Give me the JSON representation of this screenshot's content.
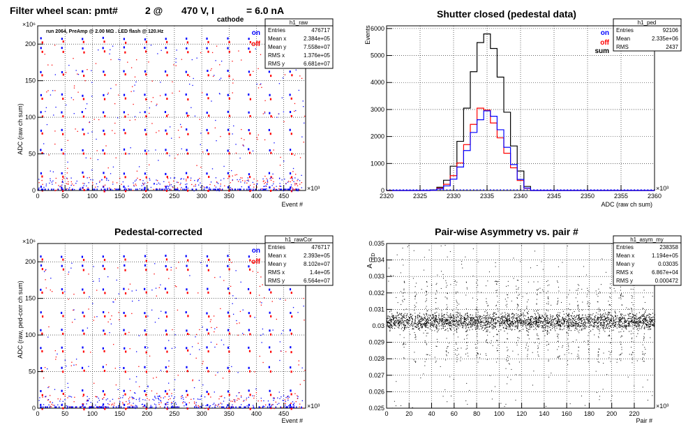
{
  "chart_data": [
    {
      "id": "raw",
      "type": "scatter",
      "title_parts": [
        "Filter wheel scan: pmt#",
        "2 @",
        "470 V, I",
        "cathode",
        "= 6.0 nA"
      ],
      "xlabel": "Event #",
      "ylabel": "ADC (raw ch sum)",
      "x_exponent": "×10³",
      "y_exponent": "×10⁶",
      "xlim": [
        0,
        490
      ],
      "ylim": [
        0,
        225
      ],
      "xticks": [
        0,
        50,
        100,
        150,
        200,
        250,
        300,
        350,
        400,
        450
      ],
      "yticks": [
        0,
        50,
        100,
        150,
        200
      ],
      "run_note": "run 2064, PreAmp @ 2.00 MΩ . LED flash @  120.Hz",
      "legend": [
        {
          "label": "on",
          "color": "#0000ff"
        },
        {
          "label": "off",
          "color": "#ff0000"
        }
      ],
      "stats": {
        "name": "h1_raw",
        "rows": [
          [
            "Entries",
            "476717"
          ],
          [
            "Mean x",
            "2.384e+05"
          ],
          [
            "Mean y",
            "7.558e+07"
          ],
          [
            "RMS x",
            "1.376e+05"
          ],
          [
            "RMS y",
            "6.681e+07"
          ]
        ]
      },
      "step_pattern": {
        "period": 38,
        "levels": [
          2,
          21,
          53,
          80,
          104,
          128,
          160,
          192,
          205
        ]
      }
    },
    {
      "id": "ped",
      "type": "line",
      "title": "Shutter closed (pedestal data)",
      "xlabel": "ADC (raw ch sum)",
      "ylabel": "Events",
      "x_exponent": "×10³",
      "xlim": [
        2320,
        2360
      ],
      "ylim": [
        0,
        6100
      ],
      "xticks": [
        2320,
        2325,
        2330,
        2335,
        2340,
        2345,
        2350,
        2355,
        2360
      ],
      "yticks": [
        0,
        1000,
        2000,
        3000,
        4000,
        5000,
        6000
      ],
      "legend": [
        {
          "label": "on",
          "color": "#0000ff"
        },
        {
          "label": "off",
          "color": "#ff0000"
        },
        {
          "label": "sum",
          "color": "#000000"
        }
      ],
      "stats": {
        "name": "h1_ped",
        "rows": [
          [
            "Entries",
            "92106"
          ],
          [
            "Mean",
            "2.335e+06"
          ],
          [
            "RMS",
            "2437"
          ]
        ]
      },
      "series": [
        {
          "name": "sum",
          "color": "#000000",
          "x": [
            2327,
            2328,
            2329,
            2330,
            2331,
            2332,
            2333,
            2334,
            2335,
            2336,
            2337,
            2338,
            2339,
            2340,
            2341
          ],
          "values": [
            20,
            120,
            380,
            900,
            1820,
            3050,
            4400,
            5480,
            5800,
            5260,
            4200,
            2900,
            1650,
            720,
            150
          ]
        },
        {
          "name": "off",
          "color": "#ff0000",
          "x": [
            2327,
            2328,
            2329,
            2330,
            2331,
            2332,
            2333,
            2334,
            2335,
            2336,
            2337,
            2338,
            2339,
            2340,
            2341
          ],
          "values": [
            10,
            80,
            230,
            550,
            1020,
            1700,
            2450,
            3050,
            2980,
            2500,
            1950,
            1380,
            840,
            370,
            80
          ]
        },
        {
          "name": "on",
          "color": "#0000ff",
          "x": [
            2327,
            2328,
            2329,
            2330,
            2331,
            2332,
            2333,
            2334,
            2335,
            2336,
            2337,
            2338,
            2339,
            2340,
            2341
          ],
          "values": [
            10,
            60,
            170,
            420,
            870,
            1480,
            2150,
            2620,
            2950,
            2750,
            2250,
            1600,
            960,
            410,
            90
          ]
        }
      ]
    },
    {
      "id": "rawcor",
      "type": "scatter",
      "title": "Pedestal-corrected",
      "xlabel": "Event #",
      "ylabel": "ADC (raw, ped-corr ch sum)",
      "x_exponent": "×10³",
      "y_exponent": "×10⁶",
      "xlim": [
        0,
        490
      ],
      "ylim": [
        0,
        225
      ],
      "xticks": [
        0,
        50,
        100,
        150,
        200,
        250,
        300,
        350,
        400,
        450
      ],
      "yticks": [
        0,
        50,
        100,
        150,
        200
      ],
      "legend": [
        {
          "label": "on",
          "color": "#0000ff"
        },
        {
          "label": "off",
          "color": "#ff0000"
        }
      ],
      "stats": {
        "name": "h1_rawCor",
        "rows": [
          [
            "Entries",
            "476717"
          ],
          [
            "Mean x",
            "2.393e+05"
          ],
          [
            "Mean y",
            "8.102e+07"
          ],
          [
            "RMS x",
            "1.4e+05"
          ],
          [
            "RMS y",
            "6.564e+07"
          ]
        ]
      },
      "step_pattern": {
        "period": 38,
        "levels": [
          2,
          21,
          53,
          80,
          104,
          128,
          160,
          192,
          205
        ]
      }
    },
    {
      "id": "asym",
      "type": "scatter",
      "title": "Pair-wise Asymmetry vs. pair #",
      "xlabel": "Pair #",
      "ylabel": "A",
      "ylabel_sub": "LED",
      "x_exponent": "×10³",
      "xlim": [
        0,
        238
      ],
      "ylim": [
        0.025,
        0.035
      ],
      "xticks": [
        0,
        20,
        40,
        60,
        80,
        100,
        120,
        140,
        160,
        180,
        200,
        220
      ],
      "yticks": [
        0.025,
        0.026,
        0.027,
        0.028,
        0.029,
        0.03,
        0.031,
        0.032,
        0.033,
        0.034,
        0.035
      ],
      "stats": {
        "name": "h1_asym_my",
        "rows": [
          [
            "Entries",
            "238358"
          ],
          [
            "Mean x",
            "1.194e+05"
          ],
          [
            "Mean y",
            "0.03035"
          ],
          [
            "RMS x",
            "6.867e+04"
          ],
          [
            "RMS y",
            "0.000472"
          ]
        ]
      },
      "band_center": 0.0303,
      "band_halfwidth": 0.00045,
      "spike_x": [
        15,
        25,
        35,
        44,
        53,
        62,
        71,
        80,
        89,
        98,
        107,
        116,
        125,
        134,
        143,
        152,
        161,
        170,
        179,
        188,
        198,
        208,
        218,
        228
      ]
    }
  ]
}
